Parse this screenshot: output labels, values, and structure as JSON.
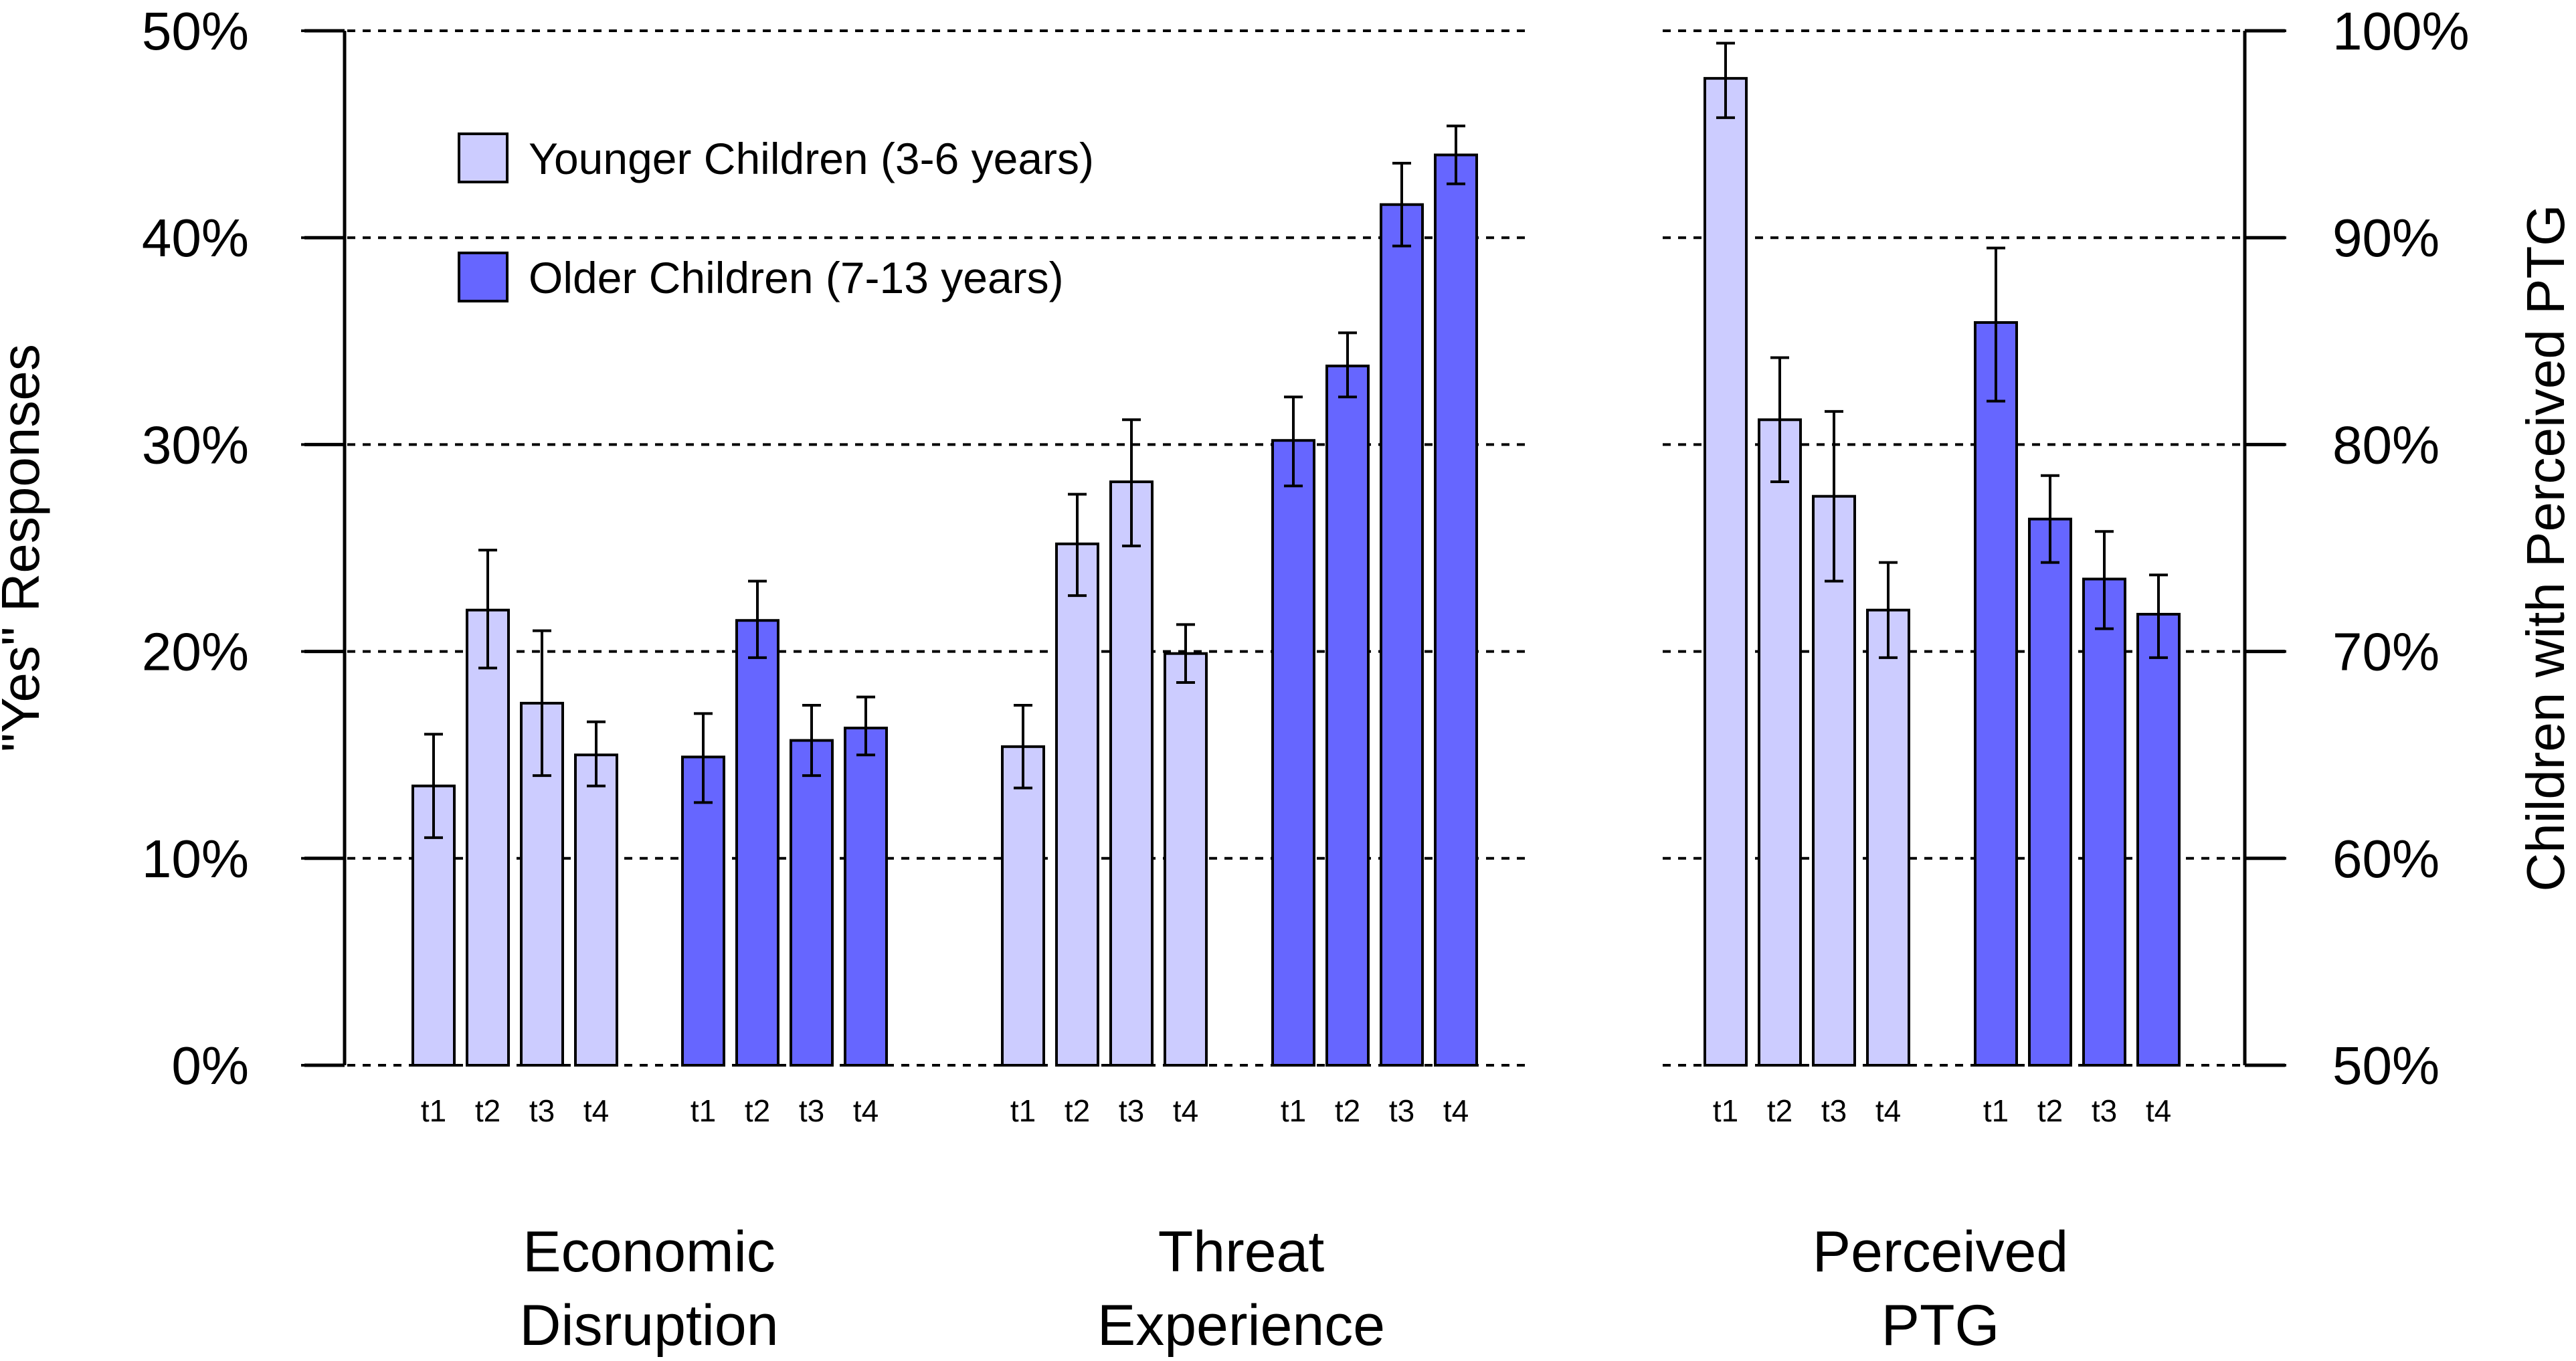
{
  "chart_data": {
    "type": "bar",
    "left_axis": {
      "title": "\"Yes\" Responses",
      "range": [
        0,
        50
      ],
      "ticks": [
        0,
        10,
        20,
        30,
        40,
        50
      ],
      "tick_labels": [
        "0%",
        "10%",
        "20%",
        "30%",
        "40%",
        "50%"
      ]
    },
    "right_axis": {
      "title": "Children with Perceived PTG",
      "range": [
        50,
        100
      ],
      "ticks": [
        50,
        60,
        70,
        80,
        90,
        100
      ],
      "tick_labels": [
        "50%",
        "60%",
        "70%",
        "80%",
        "90%",
        "100%"
      ]
    },
    "gridlines": "dashed",
    "legend": {
      "position": "top-left",
      "entries": [
        {
          "name": "Younger Children (3-6 years)",
          "color": "#ccccff"
        },
        {
          "name": "Older Children (7-13 years)",
          "color": "#6666ff"
        }
      ]
    },
    "time_labels": [
      "t1",
      "t2",
      "t3",
      "t4"
    ],
    "groups": [
      {
        "label_lines": [
          "Economic",
          "Disruption"
        ],
        "axis": "left",
        "series": [
          {
            "name": "Younger Children (3-6 years)",
            "values": [
              13.5,
              22.0,
              17.5,
              15.0
            ],
            "ci_low": [
              11.0,
              19.2,
              14.0,
              13.5
            ],
            "ci_high": [
              16.0,
              24.9,
              21.0,
              16.6
            ]
          },
          {
            "name": "Older Children (7-13 years)",
            "values": [
              14.9,
              21.5,
              15.7,
              16.3
            ],
            "ci_low": [
              12.7,
              19.7,
              14.0,
              15.0
            ],
            "ci_high": [
              17.0,
              23.4,
              17.4,
              17.8
            ]
          }
        ]
      },
      {
        "label_lines": [
          "Threat",
          "Experience"
        ],
        "axis": "left",
        "series": [
          {
            "name": "Younger Children (3-6 years)",
            "values": [
              15.4,
              25.2,
              28.2,
              19.9
            ],
            "ci_low": [
              13.4,
              22.7,
              25.1,
              18.5
            ],
            "ci_high": [
              17.4,
              27.6,
              31.2,
              21.3
            ]
          },
          {
            "name": "Older Children (7-13 years)",
            "values": [
              30.2,
              33.8,
              41.6,
              44.0
            ],
            "ci_low": [
              28.0,
              32.3,
              39.6,
              42.6
            ],
            "ci_high": [
              32.3,
              35.4,
              43.6,
              45.4
            ]
          }
        ]
      },
      {
        "label_lines": [
          "Perceived",
          "PTG"
        ],
        "axis": "right",
        "series": [
          {
            "name": "Younger Children (3-6 years)",
            "values": [
              97.7,
              81.2,
              77.5,
              72.0
            ],
            "ci_low": [
              95.8,
              78.2,
              73.4,
              69.7
            ],
            "ci_high": [
              99.4,
              84.2,
              81.6,
              74.3
            ]
          },
          {
            "name": "Older Children (7-13 years)",
            "values": [
              85.9,
              76.4,
              73.5,
              71.8
            ],
            "ci_low": [
              82.1,
              74.3,
              71.1,
              69.7
            ],
            "ci_high": [
              89.5,
              78.5,
              75.8,
              73.7
            ]
          }
        ]
      }
    ]
  }
}
